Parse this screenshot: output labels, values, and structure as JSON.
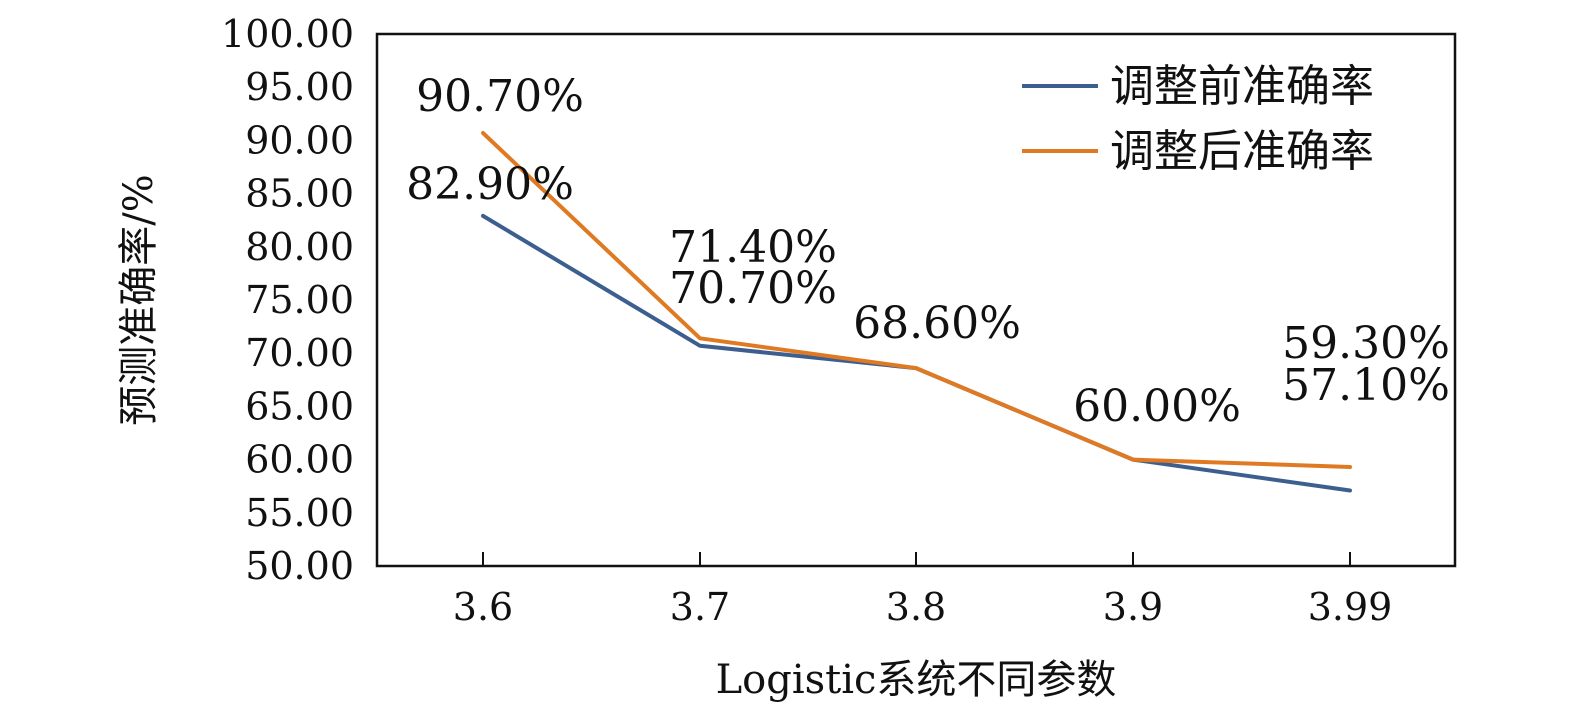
{
  "chart_data": {
    "type": "line",
    "categories": [
      "3.6",
      "3.7",
      "3.8",
      "3.9",
      "3.99"
    ],
    "series": [
      {
        "name": "调整前准确率",
        "values": [
          82.9,
          70.7,
          68.6,
          60.0,
          57.1
        ],
        "color": "#3d5f8f"
      },
      {
        "name": "调整后准确率",
        "values": [
          90.7,
          71.4,
          68.6,
          60.0,
          59.3
        ],
        "color": "#e07a22"
      }
    ],
    "data_labels": [
      "82.90%",
      "70.70%",
      "68.60%",
      "60.00%",
      "57.10%",
      "90.70%",
      "71.40%",
      "59.30%"
    ],
    "ylim": [
      50,
      100
    ],
    "yticks": [
      "50.00",
      "55.00",
      "60.00",
      "65.00",
      "70.00",
      "75.00",
      "80.00",
      "85.00",
      "90.00",
      "95.00",
      "100.00"
    ],
    "xlabel": "Logistic系统不同参数",
    "ylabel": "预测准确率/%",
    "legend_position": "top-right",
    "grid": false
  }
}
